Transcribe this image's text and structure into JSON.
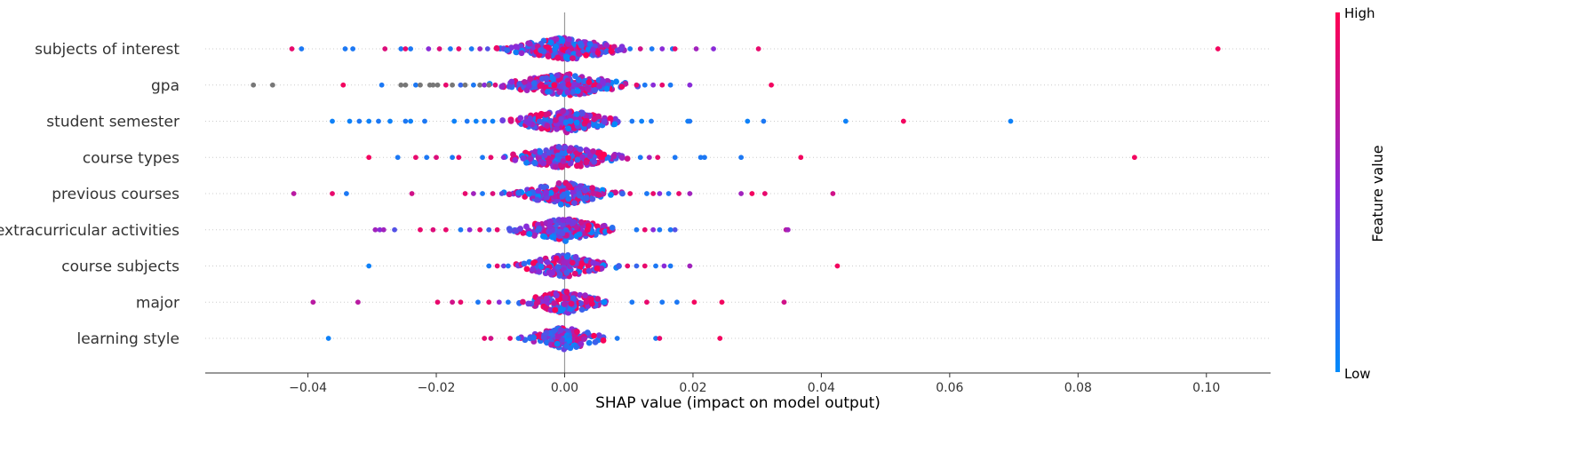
{
  "chart_data": {
    "type": "scatter",
    "subtype": "shap-beeswarm",
    "title": "",
    "xlabel": "SHAP value (impact on model output)",
    "ylabel": "",
    "xlim": [
      -0.056,
      0.11
    ],
    "xticks": [
      -0.04,
      -0.02,
      0.0,
      0.02,
      0.04,
      0.06,
      0.08,
      0.1
    ],
    "xtick_labels": [
      "−0.04",
      "−0.02",
      "0.00",
      "0.02",
      "0.04",
      "0.06",
      "0.08",
      "0.10"
    ],
    "grid": false,
    "colorbar": {
      "title": "Feature value",
      "high_label": "High",
      "low_label": "Low",
      "high_color": "#ff0052",
      "mid_color": "#8a2bd8",
      "low_color": "#008bfb",
      "missing_color": "#777777"
    },
    "series": [
      {
        "name": "subjects of interest",
        "points": [
          [
            -0.0425,
            0.9
          ],
          [
            -0.041,
            0.1
          ],
          [
            -0.0342,
            0.1
          ],
          [
            -0.033,
            0.1
          ],
          [
            -0.028,
            0.85
          ],
          [
            -0.0255,
            0.1
          ],
          [
            -0.0248,
            0.9
          ],
          [
            -0.024,
            0.1
          ],
          [
            -0.0212,
            0.5
          ],
          [
            -0.0195,
            0.85
          ],
          [
            -0.0178,
            0.1
          ],
          [
            -0.0165,
            0.9
          ],
          [
            -0.0145,
            0.1
          ],
          [
            -0.0132,
            0.6
          ],
          [
            -0.012,
            0.3
          ],
          [
            -0.0105,
            0.9
          ],
          [
            0.0102,
            0.1
          ],
          [
            0.0118,
            0.8
          ],
          [
            0.0136,
            0.1
          ],
          [
            0.0152,
            0.5
          ],
          [
            0.0168,
            0.1
          ],
          [
            0.0172,
            0.9
          ],
          [
            0.0205,
            0.6
          ],
          [
            0.0232,
            0.5
          ],
          [
            0.0302,
            0.9
          ],
          [
            0.1018,
            0.95
          ]
        ],
        "core_half_width": 0.0115,
        "core_count": 230
      },
      {
        "name": "gpa",
        "points": [
          [
            -0.0485,
            null
          ],
          [
            -0.0455,
            null
          ],
          [
            -0.0345,
            0.95
          ],
          [
            -0.0285,
            0.1
          ],
          [
            -0.0255,
            null
          ],
          [
            -0.0248,
            null
          ],
          [
            -0.0232,
            0.1
          ],
          [
            -0.0225,
            null
          ],
          [
            -0.021,
            null
          ],
          [
            -0.0205,
            null
          ],
          [
            -0.0198,
            null
          ],
          [
            -0.0185,
            0.9
          ],
          [
            -0.0175,
            null
          ],
          [
            -0.0162,
            0.2
          ],
          [
            -0.0155,
            null
          ],
          [
            -0.0142,
            0.1
          ],
          [
            -0.0132,
            null
          ],
          [
            -0.0125,
            0.5
          ],
          [
            -0.0118,
            null
          ],
          [
            -0.0108,
            0.85
          ],
          [
            0.0112,
            0.9
          ],
          [
            0.0125,
            0.1
          ],
          [
            0.0138,
            0.5
          ],
          [
            0.0152,
            0.9
          ],
          [
            0.0165,
            0.1
          ],
          [
            0.0195,
            0.5
          ],
          [
            0.0322,
            0.95
          ]
        ],
        "core_half_width": 0.012,
        "core_count": 240
      },
      {
        "name": "student semester",
        "points": [
          [
            -0.0362,
            0.05
          ],
          [
            -0.0335,
            0.05
          ],
          [
            -0.032,
            0.1
          ],
          [
            -0.0305,
            0.05
          ],
          [
            -0.029,
            0.1
          ],
          [
            -0.0272,
            0.05
          ],
          [
            -0.0248,
            0.1
          ],
          [
            -0.024,
            0.05
          ],
          [
            -0.0218,
            0.1
          ],
          [
            -0.0172,
            0.05
          ],
          [
            -0.0152,
            0.1
          ],
          [
            -0.0138,
            0.05
          ],
          [
            -0.0125,
            0.1
          ],
          [
            -0.0112,
            0.05
          ],
          [
            0.0105,
            0.1
          ],
          [
            0.012,
            0.05
          ],
          [
            0.0135,
            0.1
          ],
          [
            0.0192,
            0.05
          ],
          [
            0.0195,
            0.1
          ],
          [
            0.0285,
            0.05
          ],
          [
            0.031,
            0.1
          ],
          [
            0.0438,
            0.05
          ],
          [
            0.0528,
            0.95
          ],
          [
            0.0695,
            0.05
          ]
        ],
        "core_half_width": 0.0105,
        "core_count": 200
      },
      {
        "name": "course types",
        "points": [
          [
            -0.0305,
            0.95
          ],
          [
            -0.026,
            0.1
          ],
          [
            -0.0232,
            0.9
          ],
          [
            -0.0215,
            0.1
          ],
          [
            -0.02,
            0.85
          ],
          [
            -0.0175,
            0.1
          ],
          [
            -0.0165,
            0.9
          ],
          [
            -0.0128,
            0.1
          ],
          [
            -0.0115,
            0.9
          ],
          [
            -0.0095,
            0.5
          ],
          [
            0.0118,
            0.1
          ],
          [
            0.0132,
            0.6
          ],
          [
            0.0145,
            0.9
          ],
          [
            0.0172,
            0.1
          ],
          [
            0.0212,
            0.1
          ],
          [
            0.0218,
            0.1
          ],
          [
            0.0275,
            0.1
          ],
          [
            0.0368,
            0.95
          ],
          [
            0.0888,
            0.95
          ]
        ],
        "core_half_width": 0.011,
        "core_count": 210
      },
      {
        "name": "previous courses",
        "points": [
          [
            -0.0422,
            0.7
          ],
          [
            -0.0362,
            0.9
          ],
          [
            -0.034,
            0.1
          ],
          [
            -0.0238,
            0.8
          ],
          [
            -0.0155,
            0.9
          ],
          [
            -0.0142,
            0.6
          ],
          [
            -0.0128,
            0.1
          ],
          [
            -0.0112,
            0.85
          ],
          [
            -0.0098,
            0.3
          ],
          [
            0.0102,
            0.9
          ],
          [
            0.0128,
            0.1
          ],
          [
            0.0138,
            0.9
          ],
          [
            0.0148,
            0.5
          ],
          [
            0.0162,
            0.1
          ],
          [
            0.0178,
            0.9
          ],
          [
            0.0195,
            0.6
          ],
          [
            0.0275,
            0.6
          ],
          [
            0.0292,
            0.95
          ],
          [
            0.0312,
            0.9
          ],
          [
            0.0418,
            0.8
          ]
        ],
        "core_half_width": 0.0095,
        "core_count": 190
      },
      {
        "name": "extracurricular activities",
        "points": [
          [
            -0.0295,
            0.6
          ],
          [
            -0.0288,
            0.5
          ],
          [
            -0.0282,
            0.6
          ],
          [
            -0.0265,
            0.3
          ],
          [
            -0.0225,
            0.9
          ],
          [
            -0.0205,
            0.85
          ],
          [
            -0.0185,
            0.9
          ],
          [
            -0.0162,
            0.1
          ],
          [
            -0.0148,
            0.5
          ],
          [
            -0.0132,
            0.9
          ],
          [
            -0.0118,
            0.2
          ],
          [
            -0.0105,
            0.9
          ],
          [
            0.0112,
            0.1
          ],
          [
            0.0125,
            0.9
          ],
          [
            0.0138,
            0.5
          ],
          [
            0.0148,
            0.1
          ],
          [
            0.0165,
            0.1
          ],
          [
            0.0172,
            0.3
          ],
          [
            0.0345,
            0.7
          ],
          [
            0.0348,
            0.6
          ]
        ],
        "core_half_width": 0.0095,
        "core_count": 200
      },
      {
        "name": "course subjects",
        "points": [
          [
            -0.0305,
            0.05
          ],
          [
            -0.0118,
            0.1
          ],
          [
            -0.0105,
            0.9
          ],
          [
            -0.0095,
            0.4
          ],
          [
            -0.0088,
            0.1
          ],
          [
            0.0098,
            0.9
          ],
          [
            0.0112,
            0.2
          ],
          [
            0.0125,
            0.9
          ],
          [
            0.0142,
            0.1
          ],
          [
            0.0155,
            0.5
          ],
          [
            0.0165,
            0.1
          ],
          [
            0.0195,
            0.6
          ],
          [
            0.0425,
            0.95
          ]
        ],
        "core_half_width": 0.0085,
        "core_count": 170
      },
      {
        "name": "major",
        "points": [
          [
            -0.0392,
            0.7
          ],
          [
            -0.0322,
            0.7
          ],
          [
            -0.0198,
            0.9
          ],
          [
            -0.0175,
            0.8
          ],
          [
            -0.0162,
            0.9
          ],
          [
            -0.0135,
            0.1
          ],
          [
            -0.0118,
            0.9
          ],
          [
            -0.0102,
            0.5
          ],
          [
            -0.0088,
            0.1
          ],
          [
            0.0105,
            0.1
          ],
          [
            0.0128,
            0.9
          ],
          [
            0.0152,
            0.1
          ],
          [
            0.0175,
            0.1
          ],
          [
            0.0202,
            0.95
          ],
          [
            0.0245,
            0.95
          ],
          [
            0.0342,
            0.8
          ]
        ],
        "core_half_width": 0.008,
        "core_count": 160
      },
      {
        "name": "learning style",
        "points": [
          [
            -0.0368,
            0.05
          ],
          [
            -0.0125,
            0.9
          ],
          [
            -0.0115,
            0.8
          ],
          [
            -0.0085,
            0.9
          ],
          [
            -0.0072,
            0.1
          ],
          [
            0.0082,
            0.1
          ],
          [
            0.0142,
            0.1
          ],
          [
            0.0148,
            0.9
          ],
          [
            0.0242,
            0.95
          ]
        ],
        "core_half_width": 0.0075,
        "core_count": 140
      }
    ]
  }
}
